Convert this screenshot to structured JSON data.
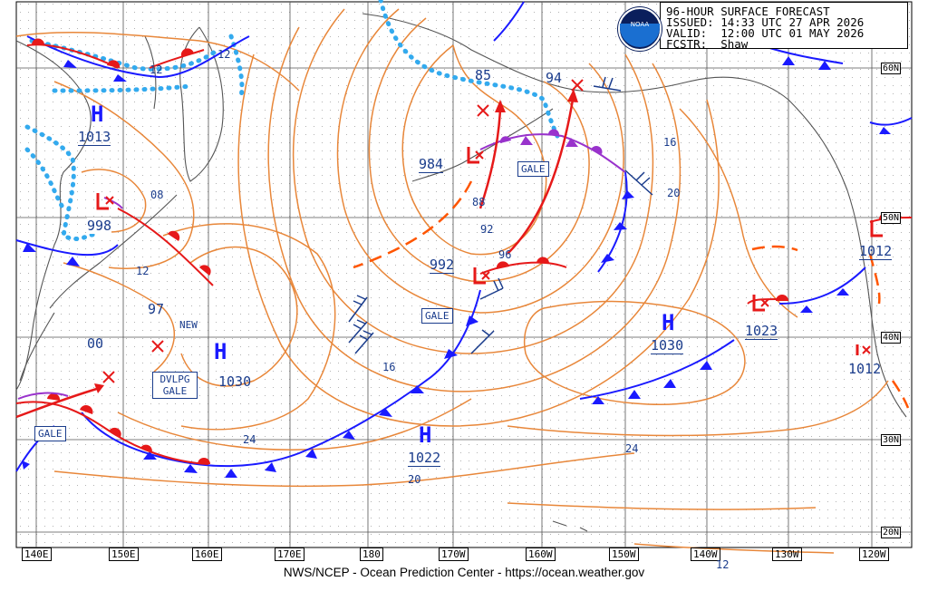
{
  "header": {
    "line1": "96-HOUR SURFACE FORECAST",
    "line2": "ISSUED: 14:33 UTC 27 APR 2026",
    "line3": "VALID:  12:00 UTC 01 MAY 2026",
    "line4": "FCSTR:  Shaw"
  },
  "logo_text": "NOAA",
  "footer": "NWS/NCEP - Ocean Prediction Center - https://ocean.weather.gov",
  "longitude_labels": [
    "140E",
    "150E",
    "160E",
    "170E",
    "180",
    "170W",
    "160W",
    "150W",
    "140W",
    "130W",
    "120W"
  ],
  "latitude_labels": [
    "60N",
    "50N",
    "40N",
    "30N",
    "20N"
  ],
  "pressure_centers": [
    {
      "type": "H",
      "value": "1013"
    },
    {
      "type": "L",
      "value": "998"
    },
    {
      "type": "H",
      "value": "1030"
    },
    {
      "type": "L",
      "value": "984"
    },
    {
      "type": "L",
      "value": "992"
    },
    {
      "type": "H",
      "value": "1022"
    },
    {
      "type": "H",
      "value": "1030"
    },
    {
      "type": "L",
      "value": "1023"
    },
    {
      "type": "L",
      "value": "1012"
    },
    {
      "type": "L",
      "value": "1012"
    }
  ],
  "warning_labels": [
    "GALE",
    "GALE",
    "GALE",
    "DVLPG GALE",
    "NEW"
  ],
  "isobar_labels": [
    "12",
    "12",
    "08",
    "12",
    "97",
    "00",
    "85",
    "94",
    "16",
    "20",
    "88",
    "92",
    "96",
    "16",
    "24",
    "20",
    "24",
    "12"
  ],
  "colors": {
    "isobar": "#e8873a",
    "cold_front": "#1a1aff",
    "warm_front": "#e61919",
    "occluded_front": "#9933cc",
    "ice_edge": "#33aaee",
    "trough": "#ff5500",
    "label": "#1a3c8c",
    "land": "#555555"
  }
}
